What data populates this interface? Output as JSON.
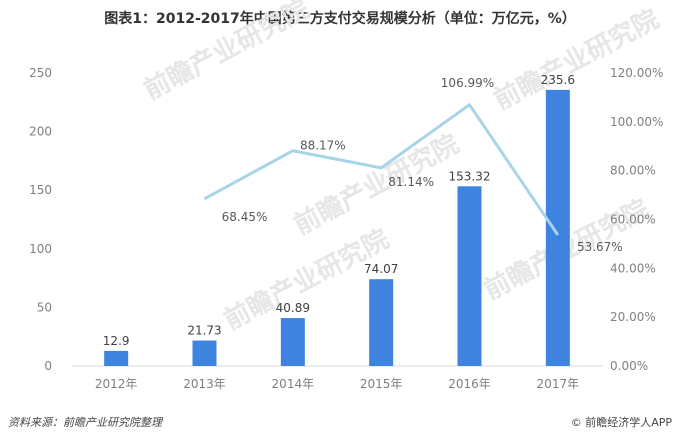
{
  "title": "图表1：2012-2017年中国第三方支付交易规模分析（单位：万亿元，%）",
  "footer": {
    "source": "资料来源：前瞻产业研究院整理",
    "brand_icon": "©",
    "brand": "前瞻经济学人APP"
  },
  "watermark": "前瞻产业研究院",
  "colors": {
    "bar": "#3f83e0",
    "line": "#a8d4ea",
    "grid": "#d9d9d9"
  },
  "chart_data": {
    "type": "bar",
    "categories": [
      "2012年",
      "2013年",
      "2014年",
      "2015年",
      "2016年",
      "2017年"
    ],
    "series": [
      {
        "type": "bar",
        "axis": "left",
        "values": [
          12.9,
          21.73,
          40.89,
          74.07,
          153.32,
          235.6
        ],
        "labels": [
          "12.9",
          "21.73",
          "40.89",
          "74.07",
          "153.32",
          "235.6"
        ]
      },
      {
        "type": "line",
        "axis": "right",
        "values": [
          null,
          68.45,
          88.17,
          81.14,
          106.99,
          53.67
        ],
        "labels": [
          "",
          "68.45%",
          "88.17%",
          "81.14%",
          "106.99%",
          "53.67%"
        ]
      }
    ],
    "ylim_left": [
      0,
      250
    ],
    "yticks_left": [
      "0",
      "50",
      "100",
      "150",
      "200",
      "250"
    ],
    "ylim_right": [
      0,
      120
    ],
    "yticks_right": [
      "0.00%",
      "20.00%",
      "40.00%",
      "60.00%",
      "80.00%",
      "100.00%",
      "120.00%"
    ],
    "grid": false,
    "legend": "none"
  }
}
